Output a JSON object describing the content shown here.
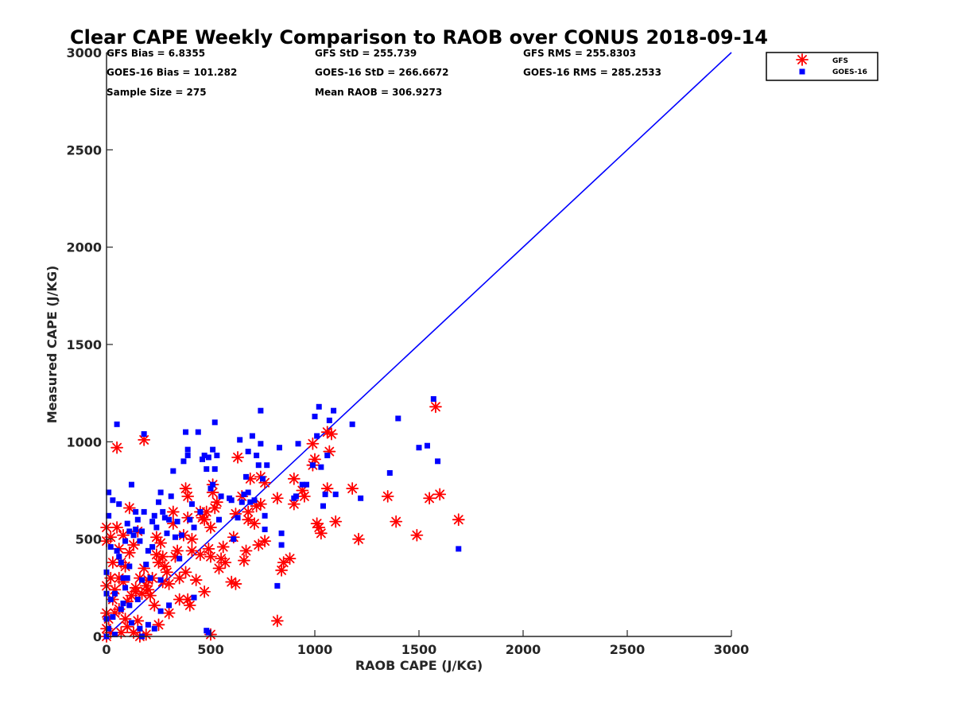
{
  "chart_data": {
    "type": "scatter",
    "title": "Clear CAPE Weekly Comparison to RAOB over CONUS 2018-09-14",
    "xlabel": "RAOB CAPE (J/KG)",
    "ylabel": "Measured CAPE (J/KG)",
    "xlim": [
      0,
      3000
    ],
    "ylim": [
      0,
      3000
    ],
    "xticks": [
      0,
      500,
      1000,
      1500,
      2000,
      2500,
      3000
    ],
    "yticks": [
      0,
      500,
      1000,
      1500,
      2000,
      2500,
      3000
    ],
    "grid": false,
    "legend_position": "top-right",
    "reference_line": {
      "from": [
        0,
        0
      ],
      "to": [
        3000,
        3000
      ],
      "color": "#0000ff"
    },
    "stats": [
      [
        "GFS Bias = 6.8355",
        "GFS StD = 255.739",
        "GFS RMS = 255.8303"
      ],
      [
        "GOES-16 Bias = 101.282",
        "GOES-16 StD = 266.6672",
        "GOES-16 RMS = 285.2533"
      ],
      [
        "Sample Size = 275",
        "Mean RAOB = 306.9273",
        ""
      ]
    ],
    "series": [
      {
        "name": "GFS",
        "marker": "asterisk",
        "color": "#ff0000",
        "points": [
          [
            1580,
            1180
          ],
          [
            1690,
            600
          ],
          [
            1600,
            730
          ],
          [
            1550,
            710
          ],
          [
            1490,
            520
          ],
          [
            1390,
            590
          ],
          [
            1350,
            720
          ],
          [
            1210,
            500
          ],
          [
            1180,
            760
          ],
          [
            1100,
            590
          ],
          [
            1080,
            1040
          ],
          [
            1060,
            1050
          ],
          [
            1070,
            950
          ],
          [
            1060,
            760
          ],
          [
            1030,
            530
          ],
          [
            1020,
            560
          ],
          [
            1010,
            580
          ],
          [
            1000,
            910
          ],
          [
            990,
            990
          ],
          [
            990,
            880
          ],
          [
            950,
            720
          ],
          [
            940,
            750
          ],
          [
            900,
            810
          ],
          [
            900,
            680
          ],
          [
            880,
            400
          ],
          [
            850,
            380
          ],
          [
            840,
            340
          ],
          [
            820,
            710
          ],
          [
            820,
            80
          ],
          [
            760,
            490
          ],
          [
            760,
            790
          ],
          [
            740,
            680
          ],
          [
            740,
            820
          ],
          [
            730,
            470
          ],
          [
            720,
            670
          ],
          [
            710,
            580
          ],
          [
            690,
            810
          ],
          [
            680,
            640
          ],
          [
            680,
            600
          ],
          [
            670,
            440
          ],
          [
            660,
            390
          ],
          [
            650,
            720
          ],
          [
            630,
            920
          ],
          [
            620,
            630
          ],
          [
            610,
            510
          ],
          [
            600,
            280
          ],
          [
            570,
            380
          ],
          [
            560,
            460
          ],
          [
            550,
            400
          ],
          [
            540,
            350
          ],
          [
            530,
            690
          ],
          [
            520,
            660
          ],
          [
            510,
            740
          ],
          [
            510,
            780
          ],
          [
            500,
            560
          ],
          [
            500,
            410
          ],
          [
            490,
            450
          ],
          [
            480,
            640
          ],
          [
            470,
            600
          ],
          [
            470,
            230
          ],
          [
            460,
            610
          ],
          [
            450,
            420
          ],
          [
            450,
            640
          ],
          [
            430,
            290
          ],
          [
            410,
            500
          ],
          [
            410,
            440
          ],
          [
            400,
            160
          ],
          [
            390,
            190
          ],
          [
            390,
            720
          ],
          [
            390,
            610
          ],
          [
            380,
            760
          ],
          [
            380,
            330
          ],
          [
            370,
            520
          ],
          [
            350,
            300
          ],
          [
            340,
            440
          ],
          [
            330,
            410
          ],
          [
            320,
            580
          ],
          [
            300,
            270
          ],
          [
            300,
            120
          ],
          [
            290,
            330
          ],
          [
            280,
            360
          ],
          [
            270,
            410
          ],
          [
            260,
            480
          ],
          [
            250,
            380
          ],
          [
            250,
            60
          ],
          [
            240,
            510
          ],
          [
            230,
            160
          ],
          [
            220,
            300
          ],
          [
            210,
            210
          ],
          [
            200,
            290
          ],
          [
            200,
            240
          ],
          [
            190,
            260
          ],
          [
            180,
            1010
          ],
          [
            180,
            350
          ],
          [
            170,
            220
          ],
          [
            160,
            300
          ],
          [
            150,
            80
          ],
          [
            140,
            250
          ],
          [
            140,
            230
          ],
          [
            130,
            470
          ],
          [
            120,
            210
          ],
          [
            110,
            660
          ],
          [
            110,
            430
          ],
          [
            100,
            180
          ],
          [
            100,
            50
          ],
          [
            90,
            360
          ],
          [
            80,
            520
          ],
          [
            80,
            280
          ],
          [
            70,
            20
          ],
          [
            60,
            450
          ],
          [
            60,
            140
          ],
          [
            50,
            970
          ],
          [
            50,
            560
          ],
          [
            40,
            120
          ],
          [
            40,
            240
          ],
          [
            30,
            380
          ],
          [
            30,
            190
          ],
          [
            20,
            510
          ],
          [
            20,
            300
          ],
          [
            10,
            90
          ],
          [
            0,
            560
          ],
          [
            0,
            0
          ],
          [
            0,
            40
          ],
          [
            0,
            120
          ],
          [
            0,
            490
          ],
          [
            0,
            260
          ],
          [
            160,
            0
          ],
          [
            190,
            10
          ],
          [
            500,
            10
          ],
          [
            350,
            190
          ],
          [
            60,
            300
          ],
          [
            70,
            380
          ],
          [
            150,
            540
          ],
          [
            240,
            420
          ],
          [
            320,
            640
          ],
          [
            130,
            20
          ],
          [
            20,
            20
          ],
          [
            90,
            90
          ],
          [
            270,
            280
          ],
          [
            620,
            270
          ]
        ]
      },
      {
        "name": "GOES-16",
        "marker": "square",
        "color": "#0000ff",
        "points": [
          [
            1570,
            1220
          ],
          [
            1690,
            450
          ],
          [
            1590,
            900
          ],
          [
            1540,
            980
          ],
          [
            1500,
            970
          ],
          [
            1360,
            840
          ],
          [
            1400,
            1120
          ],
          [
            1220,
            710
          ],
          [
            1180,
            1090
          ],
          [
            1100,
            730
          ],
          [
            1090,
            1160
          ],
          [
            1070,
            1110
          ],
          [
            1060,
            930
          ],
          [
            1020,
            1180
          ],
          [
            1030,
            870
          ],
          [
            1000,
            1130
          ],
          [
            1010,
            1030
          ],
          [
            1050,
            730
          ],
          [
            1040,
            670
          ],
          [
            990,
            880
          ],
          [
            960,
            780
          ],
          [
            940,
            780
          ],
          [
            920,
            990
          ],
          [
            910,
            720
          ],
          [
            900,
            710
          ],
          [
            840,
            530
          ],
          [
            840,
            470
          ],
          [
            830,
            970
          ],
          [
            820,
            260
          ],
          [
            760,
            550
          ],
          [
            770,
            880
          ],
          [
            760,
            620
          ],
          [
            750,
            810
          ],
          [
            740,
            1160
          ],
          [
            740,
            990
          ],
          [
            730,
            880
          ],
          [
            720,
            930
          ],
          [
            710,
            700
          ],
          [
            700,
            1030
          ],
          [
            690,
            690
          ],
          [
            680,
            950
          ],
          [
            680,
            740
          ],
          [
            670,
            820
          ],
          [
            660,
            730
          ],
          [
            650,
            690
          ],
          [
            640,
            1010
          ],
          [
            630,
            610
          ],
          [
            610,
            500
          ],
          [
            600,
            700
          ],
          [
            590,
            710
          ],
          [
            550,
            720
          ],
          [
            540,
            600
          ],
          [
            530,
            930
          ],
          [
            520,
            1100
          ],
          [
            520,
            860
          ],
          [
            510,
            960
          ],
          [
            510,
            780
          ],
          [
            500,
            760
          ],
          [
            490,
            920
          ],
          [
            480,
            860
          ],
          [
            470,
            930
          ],
          [
            460,
            910
          ],
          [
            450,
            640
          ],
          [
            440,
            1050
          ],
          [
            420,
            560
          ],
          [
            410,
            680
          ],
          [
            400,
            600
          ],
          [
            390,
            930
          ],
          [
            390,
            960
          ],
          [
            380,
            1050
          ],
          [
            370,
            900
          ],
          [
            360,
            520
          ],
          [
            350,
            400
          ],
          [
            340,
            590
          ],
          [
            330,
            510
          ],
          [
            320,
            850
          ],
          [
            310,
            720
          ],
          [
            300,
            600
          ],
          [
            290,
            530
          ],
          [
            280,
            610
          ],
          [
            270,
            640
          ],
          [
            260,
            740
          ],
          [
            260,
            290
          ],
          [
            250,
            690
          ],
          [
            240,
            560
          ],
          [
            230,
            620
          ],
          [
            220,
            590
          ],
          [
            220,
            460
          ],
          [
            210,
            300
          ],
          [
            200,
            440
          ],
          [
            190,
            370
          ],
          [
            180,
            1040
          ],
          [
            180,
            640
          ],
          [
            170,
            540
          ],
          [
            170,
            290
          ],
          [
            160,
            490
          ],
          [
            150,
            600
          ],
          [
            140,
            550
          ],
          [
            140,
            640
          ],
          [
            130,
            520
          ],
          [
            120,
            780
          ],
          [
            110,
            540
          ],
          [
            110,
            360
          ],
          [
            100,
            300
          ],
          [
            100,
            580
          ],
          [
            90,
            490
          ],
          [
            90,
            250
          ],
          [
            80,
            300
          ],
          [
            80,
            170
          ],
          [
            70,
            380
          ],
          [
            60,
            680
          ],
          [
            60,
            410
          ],
          [
            50,
            1090
          ],
          [
            50,
            440
          ],
          [
            40,
            220
          ],
          [
            30,
            700
          ],
          [
            30,
            100
          ],
          [
            20,
            460
          ],
          [
            20,
            190
          ],
          [
            10,
            740
          ],
          [
            10,
            620
          ],
          [
            10,
            40
          ],
          [
            0,
            330
          ],
          [
            0,
            220
          ],
          [
            0,
            90
          ],
          [
            0,
            0
          ],
          [
            170,
            0
          ],
          [
            490,
            20
          ],
          [
            160,
            40
          ],
          [
            200,
            60
          ],
          [
            230,
            40
          ],
          [
            120,
            70
          ],
          [
            40,
            10
          ],
          [
            70,
            140
          ],
          [
            110,
            160
          ],
          [
            150,
            190
          ],
          [
            300,
            160
          ],
          [
            420,
            200
          ],
          [
            480,
            30
          ],
          [
            260,
            130
          ]
        ]
      }
    ]
  }
}
